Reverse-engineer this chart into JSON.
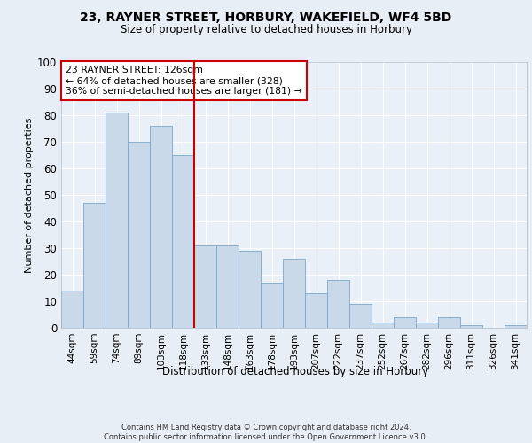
{
  "title1": "23, RAYNER STREET, HORBURY, WAKEFIELD, WF4 5BD",
  "title2": "Size of property relative to detached houses in Horbury",
  "xlabel": "Distribution of detached houses by size in Horbury",
  "ylabel": "Number of detached properties",
  "categories": [
    "44sqm",
    "59sqm",
    "74sqm",
    "89sqm",
    "103sqm",
    "118sqm",
    "133sqm",
    "148sqm",
    "163sqm",
    "178sqm",
    "193sqm",
    "207sqm",
    "222sqm",
    "237sqm",
    "252sqm",
    "267sqm",
    "282sqm",
    "296sqm",
    "311sqm",
    "326sqm",
    "341sqm"
  ],
  "values": [
    14,
    47,
    81,
    70,
    76,
    65,
    31,
    31,
    29,
    17,
    26,
    13,
    18,
    9,
    2,
    4,
    2,
    4,
    1,
    0,
    1
  ],
  "bar_color": "#c9d9ea",
  "bar_edge_color": "#7aa8c8",
  "vline_x": 5.5,
  "vline_color": "#cc0000",
  "annotation_title": "23 RAYNER STREET: 126sqm",
  "annotation_line1": "← 64% of detached houses are smaller (328)",
  "annotation_line2": "36% of semi-detached houses are larger (181) →",
  "annotation_box_color": "#ffffff",
  "annotation_box_edge": "#cc0000",
  "ylim": [
    0,
    100
  ],
  "yticks": [
    0,
    10,
    20,
    30,
    40,
    50,
    60,
    70,
    80,
    90,
    100
  ],
  "footer_line1": "Contains HM Land Registry data © Crown copyright and database right 2024.",
  "footer_line2": "Contains public sector information licensed under the Open Government Licence v3.0.",
  "bg_color": "#e8eef5",
  "plot_bg_color": "#eaf0f7"
}
